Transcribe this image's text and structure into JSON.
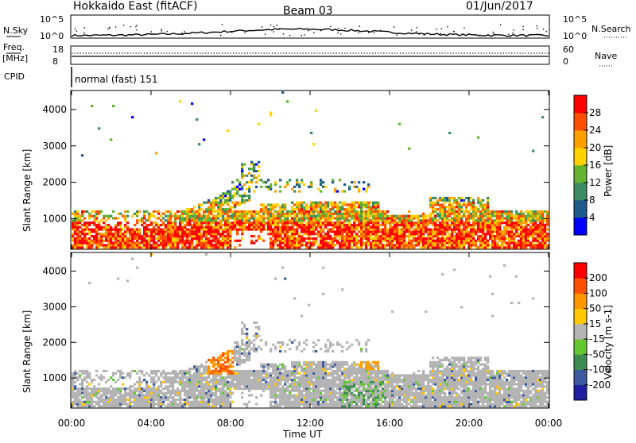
{
  "header": {
    "radar": "Hokkaido East (fitACF)",
    "beam": "Beam 03",
    "date": "01/Jun/2017"
  },
  "status_panels": {
    "nsky_label": "N.Sky",
    "nsky_ticks": [
      "10^5",
      "10^0"
    ],
    "nsearch_label": "N.Search",
    "nsearch_ticks": [
      "10^5",
      "10^0"
    ],
    "freq_label": "Freq.",
    "freq_unit": "[MHz]",
    "freq_ticks": [
      "18",
      "8"
    ],
    "nave_label": "Nave",
    "nave_ticks": [
      "60",
      "0"
    ],
    "cpid_label": "CPID",
    "cpid_text": "normal (fast) 151"
  },
  "chart_data": [
    {
      "type": "heatmap",
      "name": "power",
      "ylabel": "Slant Range [km]",
      "xlabel": "",
      "yticks": [
        "1000",
        "2000",
        "3000",
        "4000"
      ],
      "ylim": [
        180,
        4500
      ],
      "colorbar": {
        "label": "Power [dB]",
        "ticks": [
          "4",
          "8",
          "12",
          "16",
          "20",
          "24",
          "28"
        ],
        "colors": [
          "#0000ff",
          "#1e5a8c",
          "#3c8c64",
          "#64b432",
          "#ffd200",
          "#ffa000",
          "#ff5000",
          "#ff0000"
        ]
      }
    },
    {
      "type": "heatmap",
      "name": "velocity",
      "ylabel": "Slant Range [km]",
      "xlabel": "Time UT",
      "yticks": [
        "1000",
        "2000",
        "3000",
        "4000"
      ],
      "ylim": [
        180,
        4500
      ],
      "xticks": [
        "00:00",
        "04:00",
        "08:00",
        "12:00",
        "16:00",
        "20:00",
        "00:00"
      ],
      "colorbar": {
        "label": "Velocity [m s-1]",
        "ticks": [
          "200",
          "100",
          "50",
          "15",
          "-15",
          "-50",
          "-100",
          "-200"
        ],
        "colors": [
          "#1e1ea0",
          "#3c5aa0",
          "#3c8c50",
          "#64c832",
          "#b4b4b4",
          "#ffc800",
          "#ff9600",
          "#ff5000",
          "#ff0000"
        ]
      }
    }
  ]
}
